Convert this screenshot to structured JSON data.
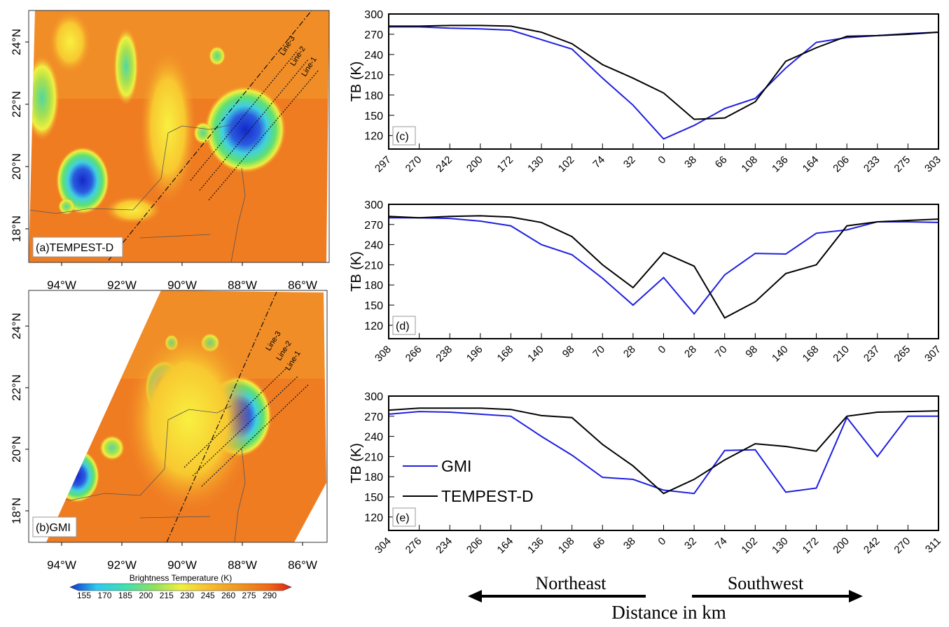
{
  "maps": [
    {
      "label": "(a)TEMPEST-D",
      "lat_labels": [
        "24°N",
        "22°N",
        "20°N",
        "18°N"
      ],
      "lon_labels": [
        "94°W",
        "92°W",
        "90°W",
        "88°W",
        "86°W"
      ],
      "line_labels": [
        "Line-3",
        "Line-2",
        "Line-1"
      ]
    },
    {
      "label": "(b)GMI",
      "lat_labels": [
        "24°N",
        "22°N",
        "20°N",
        "18°N"
      ],
      "lon_labels": [
        "94°W",
        "92°W",
        "90°W",
        "88°W",
        "86°W"
      ],
      "line_labels": [
        "Line-3",
        "Line-2",
        "Line-1"
      ]
    }
  ],
  "colorbar": {
    "title": "Brightness Temperature (K)",
    "ticks": [
      155,
      170,
      185,
      200,
      215,
      230,
      245,
      260,
      275,
      290
    ]
  },
  "chart_data": [
    {
      "type": "line",
      "label": "(c)",
      "y_label": "TB (K)",
      "categories": [
        "297",
        "270",
        "242",
        "200",
        "172",
        "130",
        "102",
        "74",
        "32",
        "0",
        "38",
        "66",
        "108",
        "136",
        "164",
        "206",
        "233",
        "275",
        "303"
      ],
      "ylim": [
        100,
        300
      ],
      "yticks": [
        120,
        150,
        180,
        210,
        240,
        270,
        300
      ],
      "series": [
        {
          "color": "#1f1fe0",
          "values": [
            281,
            281,
            279,
            278,
            276,
            262,
            248,
            205,
            165,
            115,
            135,
            160,
            175,
            220,
            258,
            265,
            268,
            271,
            273
          ]
        },
        {
          "color": "#000000",
          "values": [
            282,
            282,
            283,
            283,
            282,
            273,
            256,
            225,
            205,
            183,
            144,
            146,
            170,
            230,
            250,
            267,
            268,
            270,
            273
          ]
        }
      ]
    },
    {
      "type": "line",
      "label": "(d)",
      "y_label": "TB (K)",
      "categories": [
        "308",
        "266",
        "238",
        "196",
        "168",
        "140",
        "98",
        "70",
        "28",
        "0",
        "28",
        "70",
        "98",
        "140",
        "168",
        "210",
        "237",
        "265",
        "307"
      ],
      "ylim": [
        100,
        300
      ],
      "yticks": [
        120,
        150,
        180,
        210,
        240,
        270,
        300
      ],
      "series": [
        {
          "color": "#1f1fe0",
          "values": [
            280,
            280,
            279,
            275,
            268,
            240,
            225,
            190,
            150,
            191,
            137,
            195,
            227,
            226,
            257,
            262,
            274,
            274,
            273
          ]
        },
        {
          "color": "#000000",
          "values": [
            282,
            280,
            282,
            283,
            281,
            273,
            252,
            210,
            176,
            228,
            208,
            131,
            155,
            197,
            210,
            268,
            274,
            276,
            278
          ]
        }
      ]
    },
    {
      "type": "line",
      "label": "(e)",
      "y_label": "TB (K)",
      "legend": "left",
      "categories": [
        "304",
        "276",
        "234",
        "206",
        "164",
        "136",
        "108",
        "66",
        "38",
        "0",
        "32",
        "74",
        "102",
        "130",
        "172",
        "200",
        "242",
        "270",
        "311"
      ],
      "ylim": [
        100,
        300
      ],
      "yticks": [
        120,
        150,
        180,
        210,
        240,
        270,
        300
      ],
      "series": [
        {
          "name": "GMI",
          "color": "#1f1fe0",
          "values": [
            273,
            277,
            276,
            273,
            270,
            240,
            212,
            179,
            176,
            160,
            155,
            219,
            220,
            157,
            163,
            268,
            210,
            270,
            270
          ]
        },
        {
          "name": "TEMPEST-D",
          "color": "#000000",
          "values": [
            279,
            282,
            282,
            282,
            280,
            271,
            268,
            228,
            196,
            155,
            176,
            205,
            229,
            225,
            218,
            270,
            276,
            277,
            278
          ]
        }
      ]
    }
  ],
  "annotations": {
    "left": "Northeast",
    "right": "Southwest",
    "x_label": "Distance in km"
  }
}
